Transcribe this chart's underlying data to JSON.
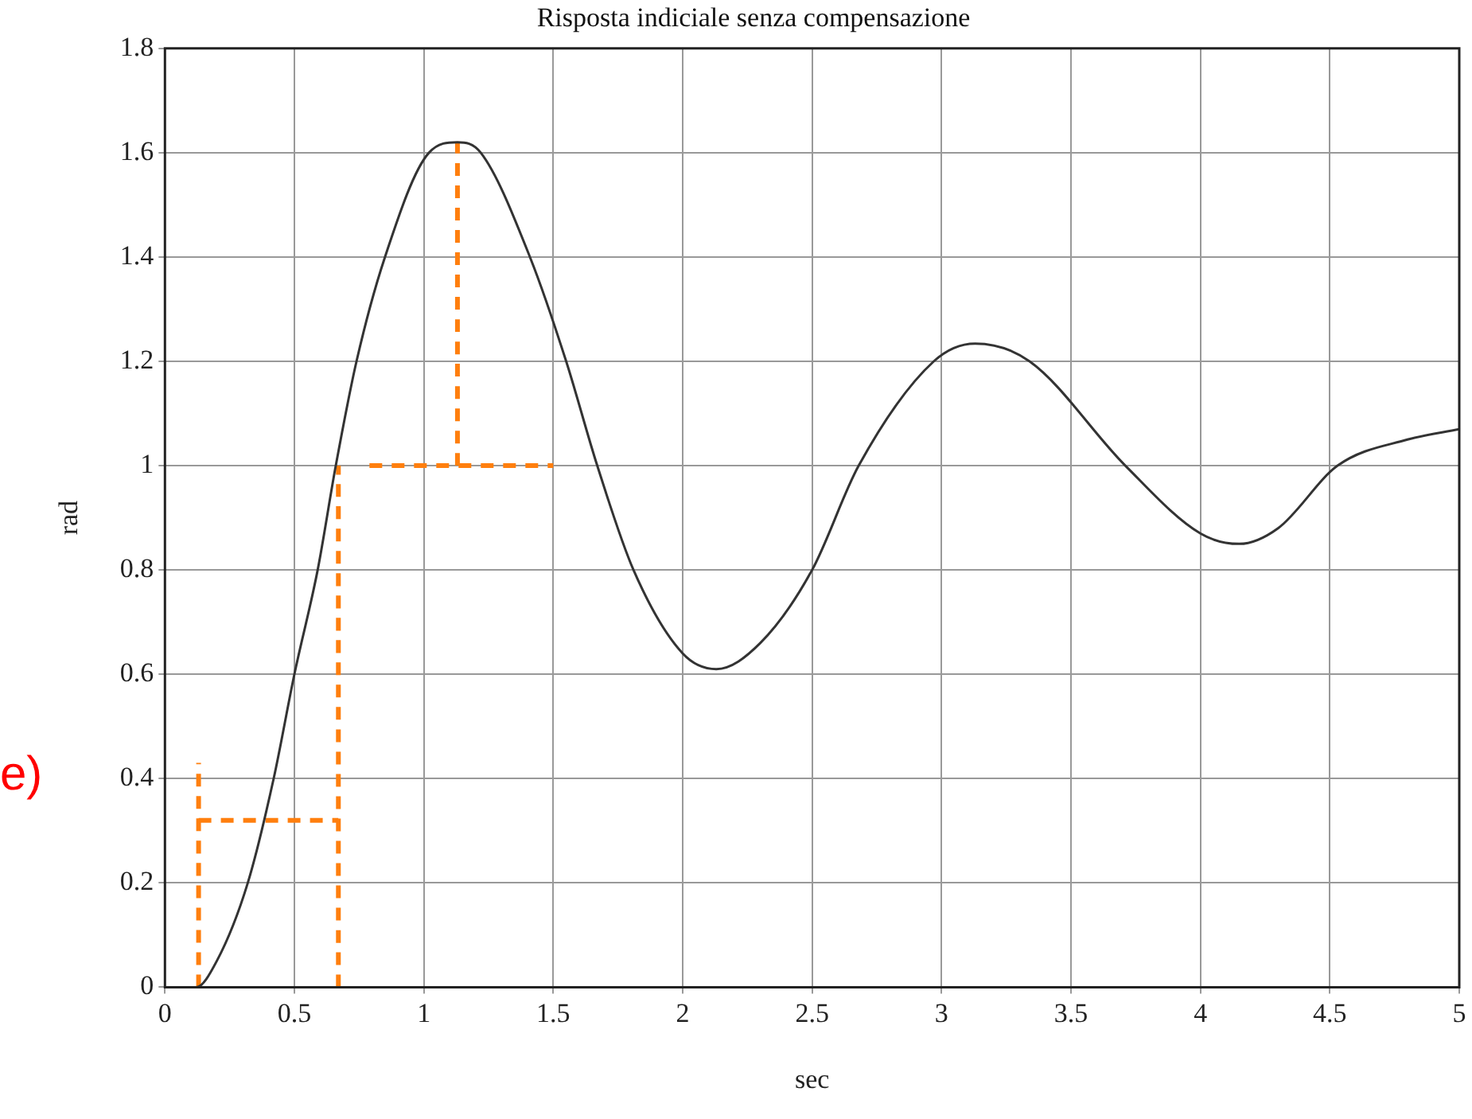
{
  "chart_data": {
    "type": "line",
    "title": "Risposta indiciale senza compensazione",
    "xlabel": "sec",
    "ylabel": "rad",
    "annotations": [
      "e)"
    ],
    "xlim": [
      0,
      5
    ],
    "xticks": [
      0,
      0.5,
      1,
      1.5,
      2,
      2.5,
      3,
      3.5,
      4,
      4.5,
      5
    ],
    "ylim": [
      0,
      1.8
    ],
    "yticks": [
      0,
      0.2,
      0.4,
      0.6,
      0.8,
      1,
      1.2,
      1.4,
      1.6,
      1.8
    ],
    "grid": true,
    "legend": false,
    "marker": "none",
    "series": [
      {
        "color": "#333333",
        "line_style": "solid",
        "x": [
          0,
          0.12,
          0.2,
          0.32,
          0.42,
          0.5,
          0.59,
          0.66,
          0.74,
          0.85,
          1.02,
          1.13,
          1.22,
          1.41,
          1.55,
          1.67,
          1.81,
          2.0,
          2.13,
          2.3,
          2.5,
          2.68,
          2.97,
          3.13,
          3.34,
          3.71,
          4.0,
          4.15,
          4.3,
          4.53,
          4.8,
          5
        ],
        "values": [
          0,
          0,
          0.05,
          0.2,
          0.4,
          0.6,
          0.8,
          1.0,
          1.2,
          1.4,
          1.6,
          1.62,
          1.6,
          1.4,
          1.2,
          1.0,
          0.8,
          0.64,
          0.61,
          0.66,
          0.8,
          1.0,
          1.2,
          1.234,
          1.2,
          1.0,
          0.87,
          0.85,
          0.88,
          1.0,
          1.05,
          1.07
        ]
      },
      {
        "color": "#ff7f0e",
        "line_style": "dashed",
        "x": [
          0.13,
          0.13
        ],
        "values": [
          0,
          0.43
        ]
      },
      {
        "color": "#ff7f0e",
        "line_style": "dashed",
        "x": [
          0.67,
          0.67
        ],
        "values": [
          0,
          1
        ]
      },
      {
        "color": "#ff7f0e",
        "line_style": "dashed",
        "x": [
          0.79,
          1.5
        ],
        "values": [
          1,
          1
        ]
      },
      {
        "color": "#ff7f0e",
        "line_style": "dashed",
        "x": [
          1.13,
          1.13
        ],
        "values": [
          1,
          1.62
        ]
      },
      {
        "color": "#ff7f0e",
        "line_style": "dashed",
        "x": [
          0.13,
          0.67
        ],
        "values": [
          0.32,
          0.32
        ]
      }
    ]
  }
}
